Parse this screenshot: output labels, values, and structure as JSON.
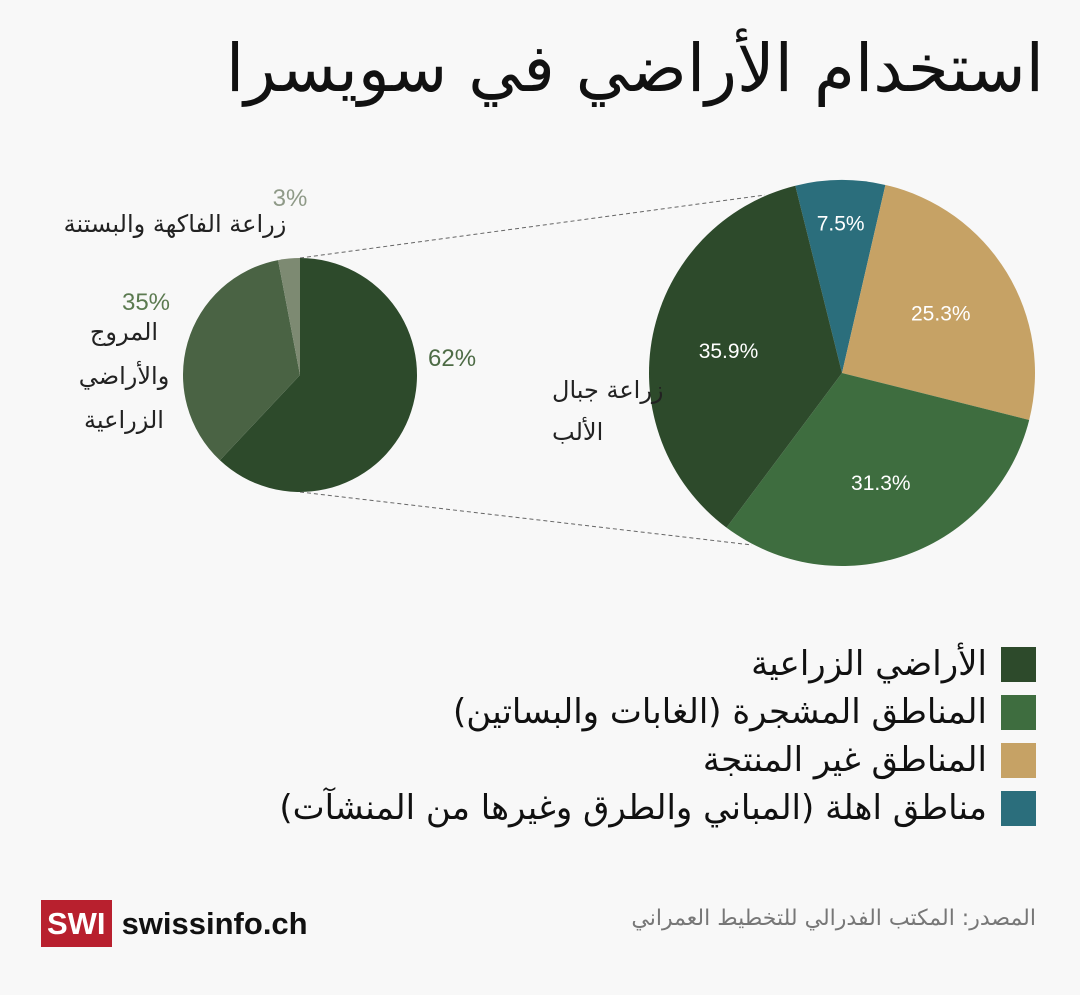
{
  "title": "استخدام الأراضي في سويسرا",
  "source": "المصدر: المكتب الفدرالي للتخطيط العمراني",
  "logo": {
    "box": "SWI",
    "text": "swissinfo.ch"
  },
  "colors": {
    "agri": "#2d4a2b",
    "forest": "#3e6d3f",
    "unproductive": "#c6a265",
    "settlement": "#2b6e7c",
    "pasture": "#4a6344",
    "orchard": "#7d8a72",
    "alpine": "#2d4a2b",
    "pct_pasture": "#5b7a50",
    "pct_orchard": "#8f9a88",
    "pct_alpine": "#4d6b45"
  },
  "legend": [
    {
      "label": "الأراضي الزراعية",
      "color": "#2d4a2b"
    },
    {
      "label": "المناطق المشجرة (الغابات والبساتين)",
      "color": "#3e6d3f"
    },
    {
      "label": "المناطق غير المنتجة",
      "color": "#c6a265"
    },
    {
      "label": "مناطق اهلة (المباني والطرق وغيرها من المنشآت)",
      "color": "#2b6e7c"
    }
  ],
  "chart_data": [
    {
      "type": "pie",
      "series": [
        {
          "name": "الأراضي الزراعية",
          "value": 35.9,
          "label": "35.9%"
        },
        {
          "name": "المناطق المشجرة (الغابات والبساتين)",
          "value": 31.3,
          "label": "31.3%"
        },
        {
          "name": "المناطق غير المنتجة",
          "value": 25.3,
          "label": "25.3%"
        },
        {
          "name": "مناطق اهلة (المباني والطرق وغيرها من المنشآت)",
          "value": 7.5,
          "label": "7.5%"
        }
      ]
    },
    {
      "type": "pie",
      "series": [
        {
          "name": "زراعة جبال الألب",
          "value": 62,
          "label": "62%",
          "name_lines": [
            "زراعة جبال",
            "الألب"
          ]
        },
        {
          "name": "المروج والأراضي الزراعية",
          "value": 35,
          "label": "35%",
          "name_lines": [
            "المروج",
            "والأراضي",
            "الزراعية"
          ]
        },
        {
          "name": "زراعة الفاكهة والبستنة",
          "value": 3,
          "label": "3%",
          "name_lines": [
            "زراعة الفاكهة والبستنة"
          ]
        }
      ]
    }
  ]
}
